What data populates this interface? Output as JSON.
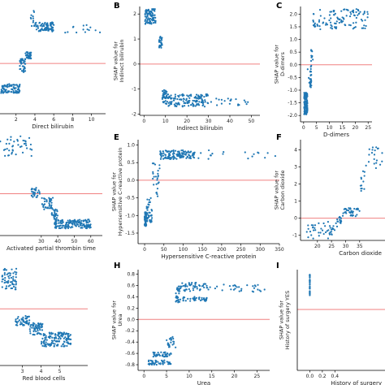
{
  "colors": {
    "points": "#1f77b4",
    "reference_line": "#f08080",
    "axis": "#000000"
  },
  "chart_data": [
    {
      "type": "scatter",
      "panel_label": "",
      "xlabel": "Direct bilirubin",
      "ylabel": "",
      "xlim": [
        0.3,
        11.5
      ],
      "ylim": [
        -2.2,
        2.6
      ],
      "xticks": [
        "2",
        "4",
        "6",
        "8",
        "10"
      ],
      "yticks": [],
      "reference_y": 0,
      "clusters": [
        {
          "x": [
            0.4,
            2.4
          ],
          "y": [
            -1.3,
            -0.9
          ],
          "n": 90
        },
        {
          "x": [
            2.4,
            3.0
          ],
          "y": [
            -0.4,
            0.2
          ],
          "n": 40
        },
        {
          "x": [
            3.0,
            3.6
          ],
          "y": [
            0.2,
            0.5
          ],
          "n": 30
        },
        {
          "x": [
            3.5,
            4.0
          ],
          "y": [
            1.6,
            2.4
          ],
          "n": 12
        },
        {
          "x": [
            4.0,
            6.0
          ],
          "y": [
            1.4,
            1.8
          ],
          "n": 80
        },
        {
          "x": [
            6.0,
            11.0
          ],
          "y": [
            1.3,
            1.7
          ],
          "n": 14
        }
      ]
    },
    {
      "type": "scatter",
      "panel_label": "B",
      "xlabel": "Indirect bilirubin",
      "ylabel": "SHAP value for\nIndirect bilirubin",
      "xlim": [
        -2,
        54
      ],
      "ylim": [
        -2.05,
        2.3
      ],
      "xticks": [
        "0",
        "10",
        "20",
        "30",
        "40",
        "50"
      ],
      "yticks": [
        "-2",
        "-1",
        "0",
        "1",
        "2"
      ],
      "reference_y": 0,
      "clusters": [
        {
          "x": [
            0.5,
            5.5
          ],
          "y": [
            1.6,
            2.2
          ],
          "n": 90
        },
        {
          "x": [
            7.0,
            8.5
          ],
          "y": [
            0.65,
            1.1
          ],
          "n": 30
        },
        {
          "x": [
            8.5,
            11.0
          ],
          "y": [
            -1.6,
            -1.0
          ],
          "n": 40
        },
        {
          "x": [
            11.0,
            30.0
          ],
          "y": [
            -1.7,
            -1.2
          ],
          "n": 140
        },
        {
          "x": [
            30.0,
            51.0
          ],
          "y": [
            -1.65,
            -1.35
          ],
          "n": 20
        }
      ]
    },
    {
      "type": "scatter",
      "panel_label": "C",
      "xlabel": "D-dimers",
      "ylabel": "SHAP value for\nD-dimers",
      "xlim": [
        -1.2,
        26.5
      ],
      "ylim": [
        -2.25,
        2.3
      ],
      "xticks": [
        "0",
        "5",
        "10",
        "15",
        "20",
        "25"
      ],
      "yticks": [
        "-2.0",
        "-1.5",
        "-1.0",
        "-0.5",
        "0.0",
        "0.5",
        "1.0",
        "1.5",
        "2.0"
      ],
      "reference_y": 0,
      "clusters": [
        {
          "x": [
            0.2,
            1.5
          ],
          "y": [
            -2.0,
            -1.1
          ],
          "n": 120
        },
        {
          "x": [
            1.5,
            3.0
          ],
          "y": [
            -1.0,
            0.0
          ],
          "n": 25
        },
        {
          "x": [
            2.8,
            3.6
          ],
          "y": [
            0.1,
            0.6
          ],
          "n": 10
        },
        {
          "x": [
            3.5,
            25.0
          ],
          "y": [
            1.4,
            2.2
          ],
          "n": 110
        }
      ]
    },
    {
      "type": "scatter",
      "panel_label": "",
      "xlabel": "Activated partial thrombin time",
      "ylabel": "",
      "xlim": [
        5,
        67
      ],
      "ylim": [
        -2.1,
        3.0
      ],
      "xticks": [
        "30",
        "40",
        "50",
        "60"
      ],
      "yticks": [],
      "reference_y": 0,
      "clusters": [
        {
          "x": [
            5,
            25
          ],
          "y": [
            1.9,
            2.9
          ],
          "n": 40
        },
        {
          "x": [
            24,
            30
          ],
          "y": [
            -0.2,
            0.3
          ],
          "n": 30
        },
        {
          "x": [
            30,
            37
          ],
          "y": [
            -0.8,
            -0.2
          ],
          "n": 40
        },
        {
          "x": [
            36,
            40
          ],
          "y": [
            -1.3,
            -0.7
          ],
          "n": 30
        },
        {
          "x": [
            38,
            60
          ],
          "y": [
            -1.75,
            -1.3
          ],
          "n": 160
        }
      ]
    },
    {
      "type": "scatter",
      "panel_label": "E",
      "xlabel": "Hypersensitive C-reactive protein",
      "ylabel": "SHAP value for\nHypersensitive C-reactive protein",
      "xlim": [
        -17,
        350
      ],
      "ylim": [
        -1.8,
        1.15
      ],
      "xticks": [
        "0",
        "50",
        "100",
        "150",
        "200",
        "250",
        "300",
        "350"
      ],
      "yticks": [
        "-1.5",
        "-1.0",
        "-0.5",
        "0.0",
        "0.5",
        "1.0"
      ],
      "reference_y": 0,
      "clusters": [
        {
          "x": [
            0,
            5
          ],
          "y": [
            -1.3,
            -0.9
          ],
          "n": 60
        },
        {
          "x": [
            5,
            20
          ],
          "y": [
            -1.2,
            -0.5
          ],
          "n": 40
        },
        {
          "x": [
            20,
            40
          ],
          "y": [
            -0.5,
            0.5
          ],
          "n": 25
        },
        {
          "x": [
            40,
            130
          ],
          "y": [
            0.6,
            0.85
          ],
          "n": 120
        },
        {
          "x": [
            130,
            340
          ],
          "y": [
            0.6,
            0.85
          ],
          "n": 18
        }
      ]
    },
    {
      "type": "scatter",
      "panel_label": "F",
      "xlabel": "Carbon dioxide",
      "ylabel": "SHAP value for\nCarbon dioxide",
      "xlim": [
        14,
        44
      ],
      "ylim": [
        -1.3,
        4.6
      ],
      "xticks": [
        "20",
        "25",
        "30",
        "35"
      ],
      "yticks": [
        "-1",
        "0",
        "1",
        "2",
        "3",
        "4"
      ],
      "reference_y": 0,
      "clusters": [
        {
          "x": [
            16,
            27
          ],
          "y": [
            -1.2,
            -0.2
          ],
          "n": 45
        },
        {
          "x": [
            27,
            29
          ],
          "y": [
            -0.3,
            0.1
          ],
          "n": 15
        },
        {
          "x": [
            29,
            35
          ],
          "y": [
            0.1,
            0.6
          ],
          "n": 40
        },
        {
          "x": [
            35,
            37
          ],
          "y": [
            1.5,
            2.8
          ],
          "n": 12
        },
        {
          "x": [
            37,
            43
          ],
          "y": [
            2.9,
            4.2
          ],
          "n": 20
        }
      ]
    },
    {
      "type": "scatter",
      "panel_label": "",
      "xlabel": "Red blood cells",
      "ylabel": "",
      "xlim": [
        1.8,
        6.5
      ],
      "ylim": [
        -2.4,
        1.9
      ],
      "xticks": [
        "3",
        "4",
        "5"
      ],
      "yticks": [],
      "reference_y": 0,
      "clusters": [
        {
          "x": [
            1.9,
            2.7
          ],
          "y": [
            0.8,
            1.7
          ],
          "n": 60
        },
        {
          "x": [
            2.6,
            3.4
          ],
          "y": [
            -0.7,
            -0.3
          ],
          "n": 50
        },
        {
          "x": [
            3.4,
            4.1
          ],
          "y": [
            -1.1,
            -0.6
          ],
          "n": 60
        },
        {
          "x": [
            4.0,
            5.6
          ],
          "y": [
            -1.6,
            -1.0
          ],
          "n": 140
        }
      ]
    },
    {
      "type": "scatter",
      "panel_label": "H",
      "xlabel": "Urea",
      "ylabel": "SHAP value for\nUrea",
      "xlim": [
        -1.3,
        27.8
      ],
      "ylim": [
        -0.9,
        0.88
      ],
      "xticks": [
        "0",
        "5",
        "10",
        "15",
        "20",
        "25"
      ],
      "yticks": [
        "-0.8",
        "-0.6",
        "-0.4",
        "-0.2",
        "0.0",
        "0.2",
        "0.4",
        "0.6",
        "0.8"
      ],
      "reference_y": 0,
      "clusters": [
        {
          "x": [
            1.0,
            6.0
          ],
          "y": [
            -0.8,
            -0.72
          ],
          "n": 45
        },
        {
          "x": [
            2.0,
            6.0
          ],
          "y": [
            -0.66,
            -0.58
          ],
          "n": 40
        },
        {
          "x": [
            5.0,
            7.0
          ],
          "y": [
            -0.5,
            -0.3
          ],
          "n": 20
        },
        {
          "x": [
            7.0,
            8.0
          ],
          "y": [
            0.3,
            0.6
          ],
          "n": 25
        },
        {
          "x": [
            8.0,
            14.0
          ],
          "y": [
            0.5,
            0.65
          ],
          "n": 50
        },
        {
          "x": [
            8.0,
            14.0
          ],
          "y": [
            0.32,
            0.4
          ],
          "n": 40
        },
        {
          "x": [
            14.0,
            27.0
          ],
          "y": [
            0.48,
            0.62
          ],
          "n": 30
        }
      ]
    },
    {
      "type": "scatter",
      "panel_label": "I",
      "xlabel": "History of surgery",
      "ylabel": "SHAP value for\nHistory of surgery YES",
      "xlim": [
        -0.2,
        1.2
      ],
      "ylim": [
        -1.3,
        0.85
      ],
      "xticks": [
        "0.0",
        "0.2",
        "0.4"
      ],
      "yticks": [],
      "reference_y": 0,
      "clusters": [
        {
          "x": [
            0.0,
            0.0
          ],
          "y": [
            0.3,
            0.75
          ],
          "n": 40
        }
      ]
    }
  ]
}
